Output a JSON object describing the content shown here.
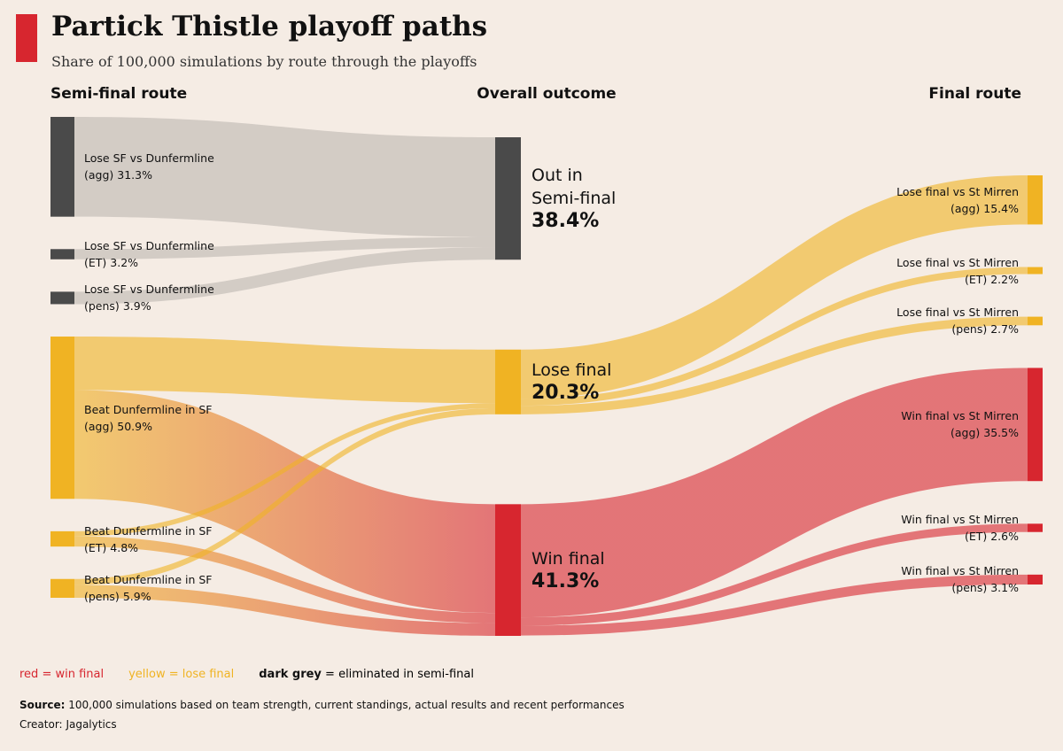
{
  "chart_data": {
    "type": "sankey",
    "title": "Partick Thistle playoff paths",
    "subtitle": "Share of 100,000 simulations by route through the playoffs",
    "columns": [
      {
        "title": "Semi-final route",
        "nodes": [
          {
            "name": "Lose SF vs Dunfermline",
            "route": "(agg)",
            "value": 31.3,
            "value_label": "31.3%",
            "color": "#4a4a4a"
          },
          {
            "name": "Lose SF vs Dunfermline",
            "route": "(ET)",
            "value": 3.2,
            "value_label": "3.2%",
            "color": "#4a4a4a"
          },
          {
            "name": "Lose SF vs Dunfermline",
            "route": "(pens)",
            "value": 3.9,
            "value_label": "3.9%",
            "color": "#4a4a4a"
          },
          {
            "name": "Beat Dunfermline in SF",
            "route": "(agg)",
            "value": 50.9,
            "value_label": "50.9%",
            "color": "#f0b323"
          },
          {
            "name": "Beat Dunfermline in SF",
            "route": "(ET)",
            "value": 4.8,
            "value_label": "4.8%",
            "color": "#f0b323"
          },
          {
            "name": "Beat Dunfermline in SF",
            "route": "(pens)",
            "value": 5.9,
            "value_label": "5.9%",
            "color": "#f0b323"
          }
        ]
      },
      {
        "title": "Overall outcome",
        "nodes": [
          {
            "name": "Out in Semi-final",
            "value": 38.4,
            "value_label": "38.4%",
            "color": "#4a4a4a"
          },
          {
            "name": "Lose final",
            "value": 20.3,
            "value_label": "20.3%",
            "color": "#f0b323"
          },
          {
            "name": "Win final",
            "value": 41.3,
            "value_label": "41.3%",
            "color": "#d7262f"
          }
        ]
      },
      {
        "title": "Final route",
        "nodes": [
          {
            "name": "Lose final vs St Mirren",
            "route": "(agg)",
            "value": 15.4,
            "value_label": "15.4%",
            "color": "#f0b323"
          },
          {
            "name": "Lose final vs St Mirren",
            "route": "(ET)",
            "value": 2.2,
            "value_label": "2.2%",
            "color": "#f0b323"
          },
          {
            "name": "Lose final vs St Mirren",
            "route": "(pens)",
            "value": 2.7,
            "value_label": "2.7%",
            "color": "#f0b323"
          },
          {
            "name": "Win final vs St Mirren",
            "route": "(agg)",
            "value": 35.5,
            "value_label": "35.5%",
            "color": "#d7262f"
          },
          {
            "name": "Win final vs St Mirren",
            "route": "(ET)",
            "value": 2.6,
            "value_label": "2.6%",
            "color": "#d7262f"
          },
          {
            "name": "Win final vs St Mirren",
            "route": "(pens)",
            "value": 3.1,
            "value_label": "3.1%",
            "color": "#d7262f"
          }
        ]
      }
    ],
    "links": [
      {
        "from": [
          0,
          0
        ],
        "to": [
          1,
          0
        ],
        "value": 31.3
      },
      {
        "from": [
          0,
          1
        ],
        "to": [
          1,
          0
        ],
        "value": 3.2
      },
      {
        "from": [
          0,
          2
        ],
        "to": [
          1,
          0
        ],
        "value": 3.9
      },
      {
        "from": [
          0,
          3
        ],
        "to": [
          1,
          1
        ],
        "value": 16.8
      },
      {
        "from": [
          0,
          3
        ],
        "to": [
          1,
          2
        ],
        "value": 34.1
      },
      {
        "from": [
          0,
          4
        ],
        "to": [
          1,
          1
        ],
        "value": 1.6
      },
      {
        "from": [
          0,
          4
        ],
        "to": [
          1,
          2
        ],
        "value": 3.2
      },
      {
        "from": [
          0,
          5
        ],
        "to": [
          1,
          1
        ],
        "value": 1.9
      },
      {
        "from": [
          0,
          5
        ],
        "to": [
          1,
          2
        ],
        "value": 4.0
      },
      {
        "from": [
          1,
          1
        ],
        "to": [
          2,
          0
        ],
        "value": 15.4
      },
      {
        "from": [
          1,
          1
        ],
        "to": [
          2,
          1
        ],
        "value": 2.2
      },
      {
        "from": [
          1,
          1
        ],
        "to": [
          2,
          2
        ],
        "value": 2.7
      },
      {
        "from": [
          1,
          2
        ],
        "to": [
          2,
          3
        ],
        "value": 35.5
      },
      {
        "from": [
          1,
          2
        ],
        "to": [
          2,
          4
        ],
        "value": 2.6
      },
      {
        "from": [
          1,
          2
        ],
        "to": [
          2,
          5
        ],
        "value": 3.1
      }
    ],
    "legend": [
      {
        "label": "red = win final",
        "color": "#d7262f"
      },
      {
        "label": "yellow = lose final",
        "color": "#f0b323"
      },
      {
        "label": "dark grey",
        "note": "= eliminated in semi-final",
        "color": "#111111"
      }
    ],
    "source": {
      "label": "Source:",
      "text": "100,000 simulations based on team strength, current standings, actual results and recent performances"
    },
    "creator": {
      "label": "Creator:",
      "text": "Jagalytics"
    }
  }
}
